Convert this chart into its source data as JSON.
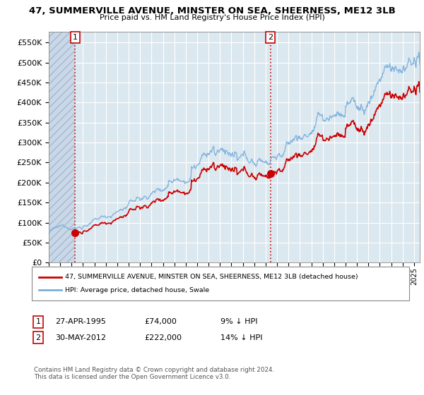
{
  "title": "47, SUMMERVILLE AVENUE, MINSTER ON SEA, SHEERNESS, ME12 3LB",
  "subtitle": "Price paid vs. HM Land Registry's House Price Index (HPI)",
  "ylim": [
    0,
    577000
  ],
  "yticks": [
    0,
    50000,
    100000,
    150000,
    200000,
    250000,
    300000,
    350000,
    400000,
    450000,
    500000,
    550000
  ],
  "sale1_year": 1995.32,
  "sale1_price": 74000,
  "sale2_year": 2012.42,
  "sale2_price": 222000,
  "legend_line1": "47, SUMMERVILLE AVENUE, MINSTER ON SEA, SHEERNESS, ME12 3LB (detached house)",
  "legend_line2": "HPI: Average price, detached house, Swale",
  "footer": "Contains HM Land Registry data © Crown copyright and database right 2024.\nThis data is licensed under the Open Government Licence v3.0.",
  "red_color": "#cc0000",
  "blue_color": "#7aafdb",
  "hatch_color": "#c8d8e8",
  "bg_color": "#dce8f0",
  "grid_color": "#ffffff",
  "xlim_start": 1993.0,
  "xlim_end": 2025.5
}
